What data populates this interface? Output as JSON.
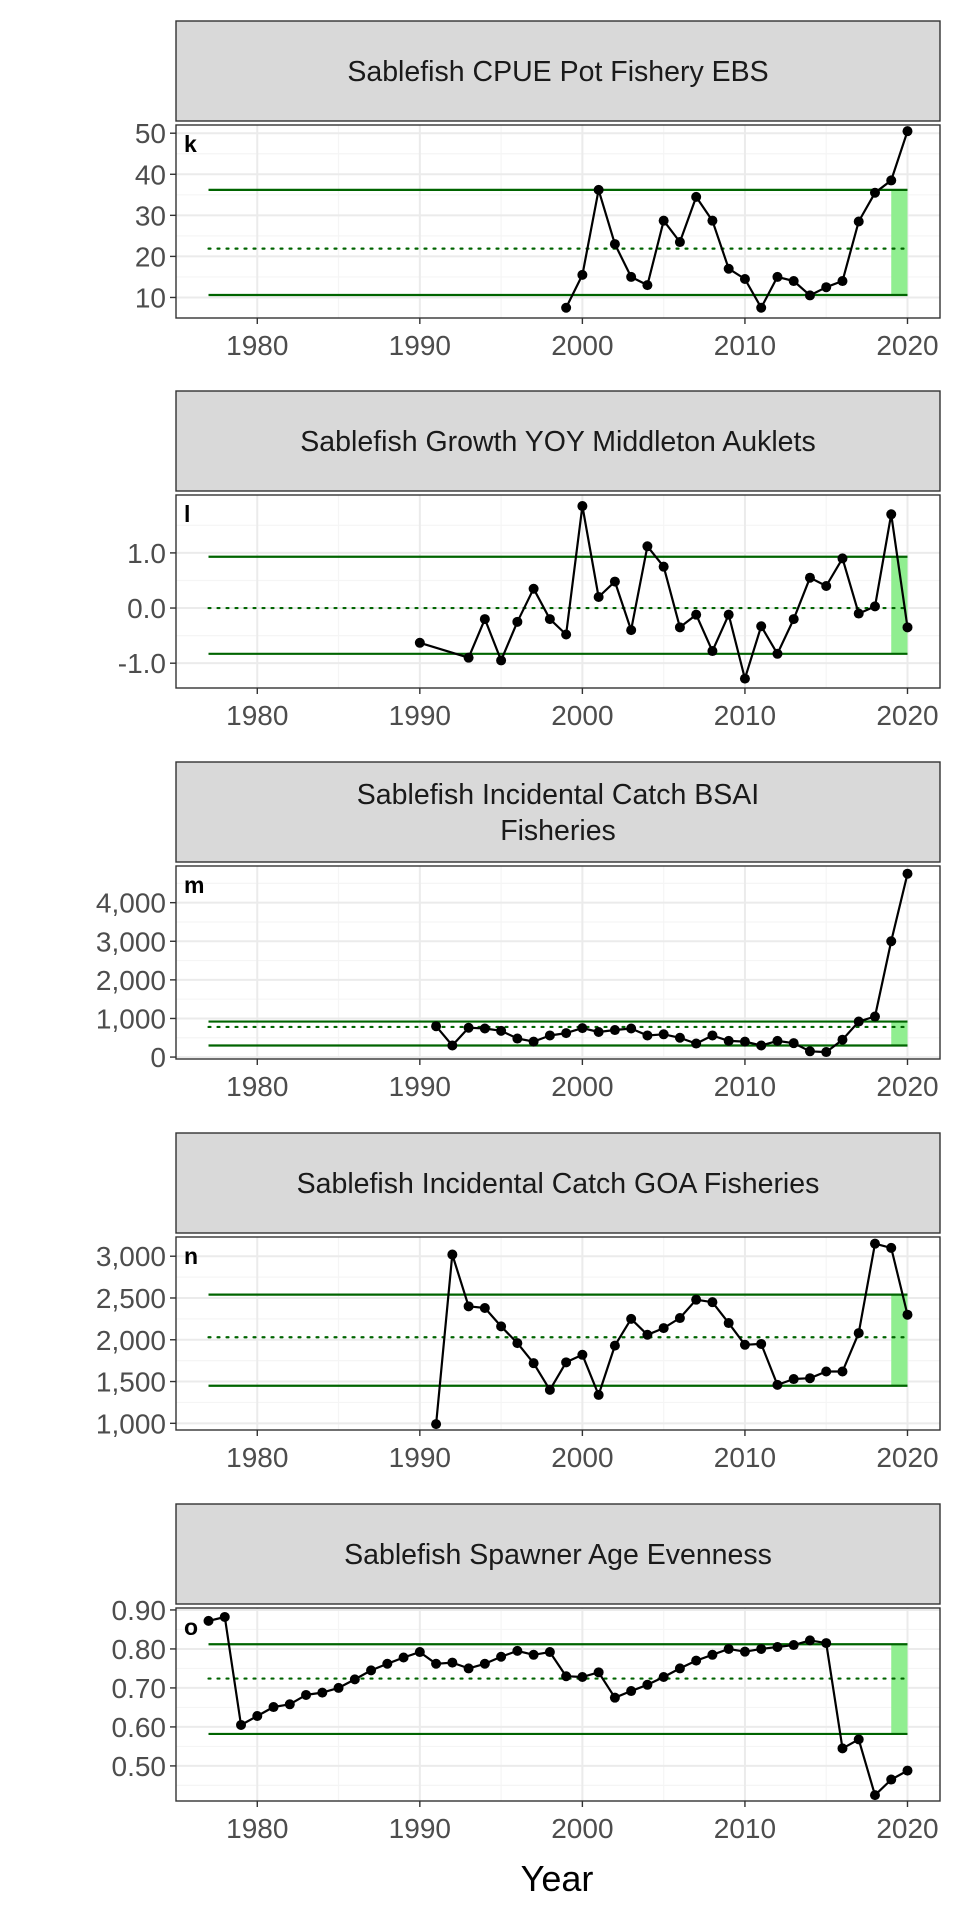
{
  "figure": {
    "xlabel": "Year"
  },
  "styles": {
    "strip_fill": "#d9d9d9",
    "border": "#333333",
    "grid_major": "#ebebeb",
    "grid_minor": "#f5f5f5",
    "ref_line": "#006400",
    "highlight": "#90ee90",
    "series": "#000000",
    "tick_text": "#4d4d4d"
  },
  "chart_data": [
    {
      "type": "line",
      "title": "Sablefish CPUE Pot Fishery EBS",
      "panel_label": "k",
      "xlabel": "Year",
      "xlim": [
        1975,
        2022
      ],
      "x_ticks": [
        1980,
        1990,
        2000,
        2010,
        2020
      ],
      "x_tick_labels": [
        "1980",
        "1990",
        "2000",
        "2010",
        "2020"
      ],
      "ylim": [
        5,
        52
      ],
      "y_ticks": [
        10,
        20,
        30,
        40,
        50
      ],
      "y_tick_labels": [
        "10",
        "20",
        "30",
        "40",
        "50"
      ],
      "mean": 21.9,
      "upper": 36.2,
      "lower": 10.6,
      "highlight_years": [
        2019,
        2020
      ],
      "x": [
        1999,
        2000,
        2001,
        2002,
        2003,
        2004,
        2005,
        2006,
        2007,
        2008,
        2009,
        2010,
        2011,
        2012,
        2013,
        2014,
        2015,
        2016,
        2017,
        2018,
        2019,
        2020
      ],
      "y": [
        7.5,
        15.5,
        36.2,
        23,
        15,
        13,
        28.7,
        23.5,
        34.5,
        28.7,
        17,
        14.5,
        7.5,
        15,
        14,
        10.5,
        12.5,
        14,
        28.5,
        35.5,
        38.5,
        50.5
      ]
    },
    {
      "type": "line",
      "title": "Sablefish Growth YOY Middleton Auklets",
      "panel_label": "l",
      "xlabel": "Year",
      "xlim": [
        1975,
        2022
      ],
      "x_ticks": [
        1980,
        1990,
        2000,
        2010,
        2020
      ],
      "x_tick_labels": [
        "1980",
        "1990",
        "2000",
        "2010",
        "2020"
      ],
      "ylim": [
        -1.45,
        2.05
      ],
      "y_ticks": [
        -1.0,
        0.0,
        1.0
      ],
      "y_tick_labels": [
        "-1.0",
        "0.0",
        "1.0"
      ],
      "mean": 0.0,
      "upper": 0.93,
      "lower": -0.83,
      "highlight_years": [
        2019,
        2020
      ],
      "x": [
        1990,
        1993,
        1994,
        1995,
        1996,
        1997,
        1998,
        1999,
        2000,
        2001,
        2002,
        2003,
        2004,
        2005,
        2006,
        2007,
        2008,
        2009,
        2010,
        2011,
        2012,
        2013,
        2014,
        2015,
        2016,
        2017,
        2018,
        2019,
        2020
      ],
      "y": [
        -0.63,
        -0.9,
        -0.2,
        -0.95,
        -0.25,
        0.35,
        -0.2,
        -0.48,
        1.85,
        0.2,
        0.48,
        -0.4,
        1.12,
        0.75,
        -0.35,
        -0.12,
        -0.78,
        -0.12,
        -1.28,
        -0.33,
        -0.83,
        -0.2,
        0.55,
        0.4,
        0.9,
        -0.1,
        0.03,
        1.7,
        -0.35
      ]
    },
    {
      "type": "line",
      "title": "Sablefish Incidental Catch BSAI\nFisheries",
      "panel_label": "m",
      "xlabel": "Year",
      "xlim": [
        1975,
        2022
      ],
      "x_ticks": [
        1980,
        1990,
        2000,
        2010,
        2020
      ],
      "x_tick_labels": [
        "1980",
        "1990",
        "2000",
        "2010",
        "2020"
      ],
      "ylim": [
        -50,
        4950
      ],
      "y_ticks": [
        0,
        1000,
        2000,
        3000,
        4000
      ],
      "y_tick_labels": [
        "0",
        "1,000",
        "2,000",
        "3,000",
        "4,000"
      ],
      "mean": 780,
      "upper": 920,
      "lower": 300,
      "highlight_years": [
        2019,
        2020
      ],
      "x": [
        1991,
        1992,
        1993,
        1994,
        1995,
        1996,
        1997,
        1998,
        1999,
        2000,
        2001,
        2002,
        2003,
        2004,
        2005,
        2006,
        2007,
        2008,
        2009,
        2010,
        2011,
        2012,
        2013,
        2014,
        2015,
        2016,
        2017,
        2018,
        2019,
        2020
      ],
      "y": [
        800,
        300,
        760,
        740,
        680,
        480,
        400,
        560,
        620,
        750,
        650,
        700,
        740,
        560,
        590,
        500,
        350,
        560,
        420,
        400,
        300,
        420,
        360,
        150,
        130,
        450,
        920,
        1050,
        3000,
        4750
      ]
    },
    {
      "type": "line",
      "title": "Sablefish Incidental Catch GOA Fisheries",
      "panel_label": "n",
      "xlabel": "Year",
      "xlim": [
        1975,
        2022
      ],
      "x_ticks": [
        1980,
        1990,
        2000,
        2010,
        2020
      ],
      "x_tick_labels": [
        "1980",
        "1990",
        "2000",
        "2010",
        "2020"
      ],
      "ylim": [
        920,
        3230
      ],
      "y_ticks": [
        1000,
        1500,
        2000,
        2500,
        3000
      ],
      "y_tick_labels": [
        "1,000",
        "1,500",
        "2,000",
        "2,500",
        "3,000"
      ],
      "mean": 2030,
      "upper": 2540,
      "lower": 1450,
      "highlight_years": [
        2019,
        2020
      ],
      "x": [
        1991,
        1992,
        1993,
        1994,
        1995,
        1996,
        1997,
        1998,
        1999,
        2000,
        2001,
        2002,
        2003,
        2004,
        2005,
        2006,
        2007,
        2008,
        2009,
        2010,
        2011,
        2012,
        2013,
        2014,
        2015,
        2016,
        2017,
        2018,
        2019,
        2020
      ],
      "y": [
        990,
        3020,
        2400,
        2380,
        2160,
        1960,
        1720,
        1400,
        1730,
        1820,
        1340,
        1930,
        2250,
        2060,
        2140,
        2260,
        2480,
        2450,
        2200,
        1940,
        1950,
        1460,
        1530,
        1540,
        1620,
        1620,
        2080,
        3150,
        3100,
        2300
      ]
    },
    {
      "type": "line",
      "title": "Sablefish Spawner Age Evenness",
      "panel_label": "o",
      "xlabel": "Year",
      "xlim": [
        1975,
        2022
      ],
      "x_ticks": [
        1980,
        1990,
        2000,
        2010,
        2020
      ],
      "x_tick_labels": [
        "1980",
        "1990",
        "2000",
        "2010",
        "2020"
      ],
      "ylim": [
        0.41,
        0.905
      ],
      "y_ticks": [
        0.5,
        0.6,
        0.7,
        0.8,
        0.9
      ],
      "y_tick_labels": [
        "0.50",
        "0.60",
        "0.70",
        "0.80",
        "0.90"
      ],
      "mean": 0.724,
      "upper": 0.812,
      "lower": 0.582,
      "highlight_years": [
        2019,
        2020
      ],
      "x": [
        1977,
        1978,
        1979,
        1980,
        1981,
        1982,
        1983,
        1984,
        1985,
        1986,
        1987,
        1988,
        1989,
        1990,
        1991,
        1992,
        1993,
        1994,
        1995,
        1996,
        1997,
        1998,
        1999,
        2000,
        2001,
        2002,
        2003,
        2004,
        2005,
        2006,
        2007,
        2008,
        2009,
        2010,
        2011,
        2012,
        2013,
        2014,
        2015,
        2016,
        2017,
        2018,
        2019,
        2020
      ],
      "y": [
        0.872,
        0.882,
        0.605,
        0.628,
        0.651,
        0.658,
        0.682,
        0.688,
        0.7,
        0.722,
        0.745,
        0.762,
        0.778,
        0.792,
        0.762,
        0.765,
        0.75,
        0.762,
        0.78,
        0.795,
        0.785,
        0.792,
        0.73,
        0.728,
        0.74,
        0.675,
        0.692,
        0.708,
        0.728,
        0.75,
        0.77,
        0.785,
        0.8,
        0.793,
        0.8,
        0.805,
        0.81,
        0.822,
        0.815,
        0.545,
        0.568,
        0.425,
        0.465,
        0.488
      ]
    }
  ]
}
